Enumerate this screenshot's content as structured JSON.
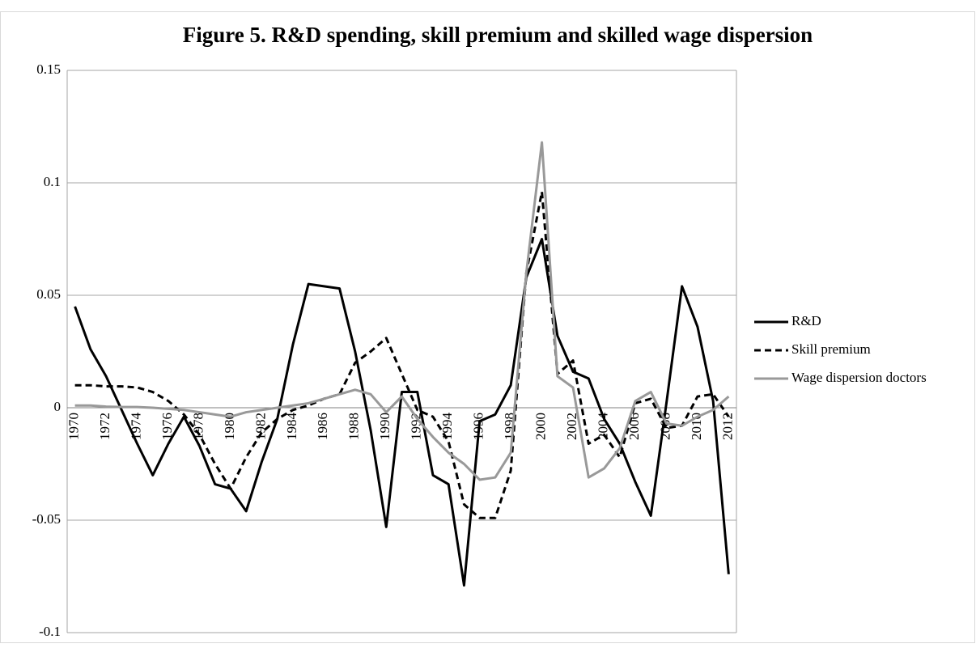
{
  "chart_data": {
    "type": "line",
    "title": "Figure 5. R&D spending, skill premium and skilled wage dispersion",
    "categories": [
      "1970",
      null,
      "1972",
      null,
      "1974",
      null,
      "1976",
      null,
      "1978",
      null,
      "1980",
      null,
      "1982",
      null,
      "1984",
      null,
      "1986",
      null,
      "1988",
      null,
      "1990",
      null,
      "1992",
      null,
      "1994",
      null,
      "1996",
      null,
      "1998",
      null,
      "2000",
      null,
      "2002",
      null,
      "2004",
      null,
      "2006",
      null,
      "2008",
      null,
      "2010",
      null,
      "2012"
    ],
    "series": [
      {
        "name": "R&D",
        "color": "#000000",
        "dashed": false,
        "values": [
          0.045,
          0.026,
          0.014,
          -0.001,
          -0.016,
          -0.03,
          -0.016,
          -0.004,
          -0.017,
          -0.034,
          -0.036,
          -0.046,
          -0.024,
          -0.005,
          0.028,
          0.055,
          0.054,
          0.053,
          0.025,
          -0.01,
          -0.053,
          0.007,
          0.007,
          -0.03,
          -0.034,
          -0.079,
          -0.006,
          -0.003,
          0.01,
          0.058,
          0.075,
          0.032,
          0.016,
          0.013,
          -0.005,
          -0.016,
          -0.033,
          -0.048,
          0.002,
          0.054,
          0.036,
          0.003,
          -0.074
        ]
      },
      {
        "name": "Skill premium",
        "color": "#000000",
        "dashed": true,
        "values": [
          0.01,
          0.01,
          0.0095,
          0.0095,
          0.009,
          0.007,
          0.003,
          -0.003,
          -0.012,
          -0.025,
          -0.036,
          -0.022,
          -0.011,
          -0.005,
          -0.001,
          0.001,
          0.004,
          0.006,
          0.02,
          0.025,
          0.031,
          0.015,
          -0.001,
          -0.004,
          -0.015,
          -0.043,
          -0.049,
          -0.049,
          -0.028,
          0.06,
          0.096,
          0.015,
          0.021,
          -0.016,
          -0.012,
          -0.022,
          0.002,
          0.004,
          -0.009,
          -0.008,
          0.005,
          0.006,
          -0.004
        ]
      },
      {
        "name": "Wage dispersion doctors",
        "color": "#999999",
        "dashed": false,
        "values": [
          0.001,
          0.001,
          0.0005,
          0.0003,
          0.0003,
          0,
          -0.0005,
          -0.001,
          -0.002,
          -0.003,
          -0.004,
          -0.002,
          -0.001,
          0,
          0.001,
          0.002,
          0.004,
          0.006,
          0.008,
          0.006,
          -0.002,
          0.005,
          -0.005,
          -0.013,
          -0.02,
          -0.025,
          -0.032,
          -0.031,
          -0.02,
          0.06,
          0.118,
          0.014,
          0.009,
          -0.031,
          -0.027,
          -0.018,
          0.003,
          0.007,
          -0.007,
          -0.008,
          -0.004,
          -0.001,
          0.005
        ]
      }
    ],
    "ylim": [
      -0.1,
      0.15
    ],
    "yticks": [
      -0.1,
      -0.05,
      0,
      0.05,
      0.1,
      0.15
    ],
    "grid": true,
    "legend": "right"
  }
}
